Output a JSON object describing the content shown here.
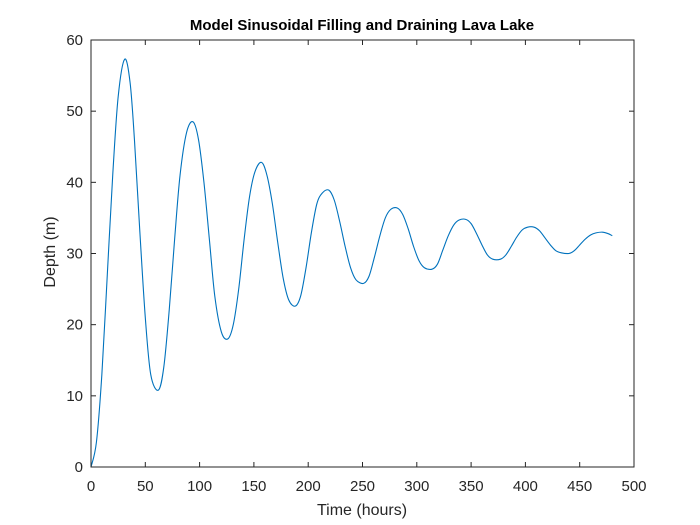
{
  "chart_data": {
    "type": "line",
    "title": "Model Sinusoidal Filling and Draining Lava Lake",
    "xlabel": "Time (hours)",
    "ylabel": "Depth (m)",
    "xlim": [
      0,
      500
    ],
    "ylim": [
      0,
      60
    ],
    "xticks": [
      0,
      50,
      100,
      150,
      200,
      250,
      300,
      350,
      400,
      450,
      500
    ],
    "yticks": [
      0,
      10,
      20,
      30,
      40,
      50,
      60
    ],
    "grid": false,
    "legend": "none",
    "series": [
      {
        "color": "#0072BD",
        "x": [
          0,
          5,
          10,
          15,
          20,
          25,
          31,
          36,
          40,
          45,
          50,
          55,
          62,
          67,
          72,
          77,
          82,
          88,
          94,
          99,
          104,
          109,
          114,
          120,
          126,
          131,
          136,
          141,
          146,
          151,
          157,
          162,
          167,
          172,
          177,
          182,
          188,
          193,
          198,
          203,
          208,
          213,
          219,
          224,
          229,
          234,
          239,
          244,
          251,
          256,
          261,
          266,
          271,
          276,
          282,
          287,
          292,
          297,
          302,
          307,
          314,
          319,
          324,
          329,
          334,
          339,
          345,
          350,
          355,
          360,
          365,
          370,
          377,
          382,
          387,
          392,
          397,
          402,
          408,
          413,
          418,
          423,
          428,
          433,
          440,
          445,
          450,
          455,
          460,
          465,
          471,
          476,
          480
        ],
        "y": [
          0,
          3.5,
          13,
          27,
          41,
          52,
          57.3,
          54,
          46,
          33,
          21,
          13,
          10.8,
          14,
          22,
          32,
          41,
          47,
          48.5,
          46,
          40,
          32,
          24,
          19,
          18,
          20,
          25,
          32,
          38,
          41.5,
          42.8,
          41,
          37,
          31.5,
          26.5,
          23.5,
          22.6,
          24,
          28,
          33,
          37,
          38.5,
          38.9,
          37.5,
          34.5,
          31,
          28,
          26.3,
          25.8,
          26.8,
          29.5,
          32.5,
          35,
          36.2,
          36.4,
          35.5,
          33.5,
          31,
          29,
          28,
          27.8,
          28.5,
          30.5,
          32.5,
          34,
          34.7,
          34.8,
          34.2,
          32.8,
          31.2,
          29.8,
          29.2,
          29.2,
          29.8,
          31,
          32.3,
          33.3,
          33.7,
          33.7,
          33.2,
          32.2,
          31.2,
          30.4,
          30.1,
          30.0,
          30.4,
          31.2,
          32.0,
          32.6,
          32.9,
          33.0,
          32.8,
          32.5
        ]
      }
    ]
  }
}
